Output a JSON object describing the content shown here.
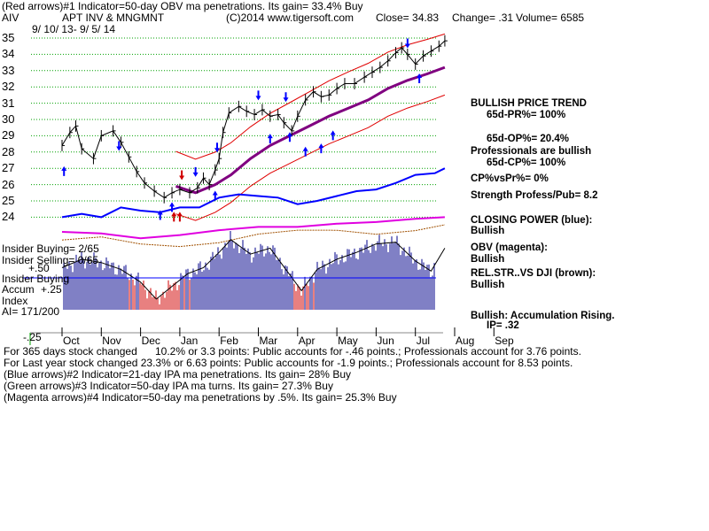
{
  "header": {
    "line1": "(Red arrows)#1 Indicator=50-day OBV ma penetrations. Its gain= 33.4% Buy",
    "symbol": "AIV",
    "company": "APT INV & MNGMNT",
    "copyright": "(C)2014 www.tigersoft.com",
    "close": "Close=  34.83",
    "change": "Change= .31",
    "volume": "Volume= 6585",
    "daterange": "9/ 10/ 13- 9/ 5/ 14"
  },
  "left_labels": {
    "insider_buying_count": "Insider Buying= 2/65",
    "insider_selling_count": "Insider Selling= 0/65",
    "plus50": "+.50",
    "insider_buying": "Insider Buying",
    "accum": "Accum",
    "plus25": "+.25",
    "index": "Index",
    "ai": "AI= 171/200",
    "minus25": "-.25"
  },
  "right_panel": {
    "trend_title": "BULLISH PRICE TREND",
    "pr": "65d-PR%= 100%",
    "op": "65d-OP%= 20.4%",
    "professionals": "Professionals are bullish",
    "cp": "65d-CP%= 100%",
    "cpvspr": "CP%vsPr%=  0%",
    "strength": "Strength Profess/Pub= 8.2",
    "closing_power": "CLOSING POWER (blue):",
    "closing_power_val": "Bullish",
    "obv": "OBV (magenta):",
    "obv_val": "Bullish",
    "relstr": "REL.STR..VS DJI (brown):",
    "relstr_val": "Bullish",
    "accum": "Bullish: Accumulation Rising.",
    "ip": "IP=  .32"
  },
  "footer": {
    "line1_a": "For 365 days stock changed",
    "line1_b": "10.2% or  3.3 points:  Public accounts for -.46 points.;  Professionals account for  3.76 points.",
    "line2": "For Last year stock changed  23.3% or  6.63 points:  Public accounts for -1.9 points.;  Professionals account for  8.53 points.",
    "line3": "(Blue arrows)#2 Indicator=21-day IPA ma penetrations. Its gain= 28% Buy",
    "line4": "(Green arrows)#3 Indicator=50-day IPA ma turns. Its gain= 27.3% Buy",
    "line5": "(Magenta arrows)#4 Indicator=50-day ma penetrations by .5%. Its gain= 25.3% Buy"
  },
  "colors": {
    "price": "#000000",
    "ma": "#800080",
    "bands": "#e00000",
    "closing_power": "#0000ff",
    "obv": "#e000e0",
    "relstr": "#a05000",
    "grid": "#00a000",
    "accum_pos": "#00008b",
    "accum_neg": "#d00000"
  },
  "chart_data": {
    "type": "line",
    "title": "AIV  APT INV & MNGMNT",
    "months": [
      "Oct",
      "Nov",
      "Dec",
      "Jan",
      "Feb",
      "Mar",
      "Apr",
      "May",
      "Jun",
      "Jul",
      "Aug",
      "Sep"
    ],
    "yticks": [
      35,
      34,
      33,
      32,
      31,
      30,
      29,
      28,
      27,
      26,
      25,
      24
    ],
    "ylim": [
      23.5,
      35.4
    ],
    "accum_ticks": [
      "+.50",
      "+.25",
      "-.25"
    ],
    "price": [
      [
        0,
        28.4
      ],
      [
        0.2,
        29.2
      ],
      [
        0.35,
        29.6
      ],
      [
        0.5,
        28.2
      ],
      [
        0.8,
        27.6
      ],
      [
        1.0,
        29.0
      ],
      [
        1.3,
        29.3
      ],
      [
        1.5,
        28.6
      ],
      [
        1.7,
        27.7
      ],
      [
        1.9,
        26.8
      ],
      [
        2.1,
        26.1
      ],
      [
        2.35,
        25.6
      ],
      [
        2.6,
        25.2
      ],
      [
        2.8,
        25.5
      ],
      [
        3.0,
        25.7
      ],
      [
        3.25,
        25.5
      ],
      [
        3.45,
        25.8
      ],
      [
        3.6,
        26.4
      ],
      [
        3.75,
        26.0
      ],
      [
        3.9,
        26.9
      ],
      [
        4.0,
        27.6
      ],
      [
        4.1,
        29.2
      ],
      [
        4.25,
        30.4
      ],
      [
        4.5,
        30.8
      ],
      [
        4.7,
        30.5
      ],
      [
        4.9,
        30.3
      ],
      [
        5.1,
        30.6
      ],
      [
        5.3,
        30.2
      ],
      [
        5.5,
        30.3
      ],
      [
        5.65,
        29.8
      ],
      [
        5.85,
        29.3
      ],
      [
        6.0,
        30.2
      ],
      [
        6.2,
        31.2
      ],
      [
        6.4,
        31.7
      ],
      [
        6.6,
        31.4
      ],
      [
        6.8,
        31.5
      ],
      [
        7.0,
        31.9
      ],
      [
        7.2,
        32.2
      ],
      [
        7.45,
        32.2
      ],
      [
        7.7,
        32.6
      ],
      [
        7.9,
        32.9
      ],
      [
        8.1,
        33.2
      ],
      [
        8.3,
        33.6
      ],
      [
        8.5,
        34.1
      ],
      [
        8.65,
        34.4
      ],
      [
        8.8,
        34.0
      ],
      [
        9.0,
        33.4
      ],
      [
        9.2,
        33.9
      ],
      [
        9.4,
        34.2
      ],
      [
        9.6,
        34.5
      ],
      [
        9.75,
        34.83
      ]
    ],
    "ma50": [
      [
        2.9,
        25.9
      ],
      [
        3.4,
        25.5
      ],
      [
        3.9,
        26.0
      ],
      [
        4.3,
        26.6
      ],
      [
        4.8,
        27.6
      ],
      [
        5.3,
        28.4
      ],
      [
        5.8,
        29.0
      ],
      [
        6.3,
        29.6
      ],
      [
        6.8,
        30.2
      ],
      [
        7.3,
        30.7
      ],
      [
        7.8,
        31.2
      ],
      [
        8.3,
        31.9
      ],
      [
        8.8,
        32.4
      ],
      [
        9.3,
        32.8
      ],
      [
        9.75,
        33.2
      ]
    ],
    "closing_power": [
      [
        0,
        24.0
      ],
      [
        0.5,
        24.2
      ],
      [
        1.0,
        24.0
      ],
      [
        1.5,
        24.6
      ],
      [
        2.0,
        24.4
      ],
      [
        2.5,
        24.3
      ],
      [
        3.0,
        24.6
      ],
      [
        3.5,
        24.6
      ],
      [
        4.0,
        25.2
      ],
      [
        4.5,
        25.4
      ],
      [
        5.0,
        25.3
      ],
      [
        5.5,
        25.2
      ],
      [
        6.0,
        24.8
      ],
      [
        6.5,
        25.0
      ],
      [
        7.0,
        25.3
      ],
      [
        7.5,
        25.6
      ],
      [
        8.0,
        25.7
      ],
      [
        8.5,
        26.1
      ],
      [
        9.0,
        26.6
      ],
      [
        9.5,
        26.7
      ],
      [
        9.75,
        27.0
      ]
    ],
    "obv": [
      [
        0,
        23.1
      ],
      [
        1.0,
        23.0
      ],
      [
        2.0,
        22.7
      ],
      [
        3.0,
        22.9
      ],
      [
        4.0,
        23.2
      ],
      [
        5.0,
        23.4
      ],
      [
        6.0,
        23.4
      ],
      [
        7.0,
        23.6
      ],
      [
        8.0,
        23.7
      ],
      [
        9.0,
        23.9
      ],
      [
        9.75,
        24.0
      ]
    ],
    "accumulation": [
      [
        0,
        0.12
      ],
      [
        0.5,
        0.22
      ],
      [
        1.0,
        0.18
      ],
      [
        1.5,
        0.1
      ],
      [
        2.0,
        -0.05
      ],
      [
        2.4,
        -0.25
      ],
      [
        2.8,
        -0.1
      ],
      [
        3.2,
        0.05
      ],
      [
        3.6,
        0.12
      ],
      [
        4.0,
        0.3
      ],
      [
        4.3,
        0.45
      ],
      [
        4.8,
        0.28
      ],
      [
        5.3,
        0.35
      ],
      [
        5.7,
        0.1
      ],
      [
        6.1,
        -0.15
      ],
      [
        6.5,
        0.1
      ],
      [
        7.0,
        0.22
      ],
      [
        7.5,
        0.3
      ],
      [
        8.0,
        0.4
      ],
      [
        8.5,
        0.42
      ],
      [
        9.0,
        0.2
      ],
      [
        9.4,
        0.08
      ],
      [
        9.75,
        0.35
      ]
    ]
  }
}
